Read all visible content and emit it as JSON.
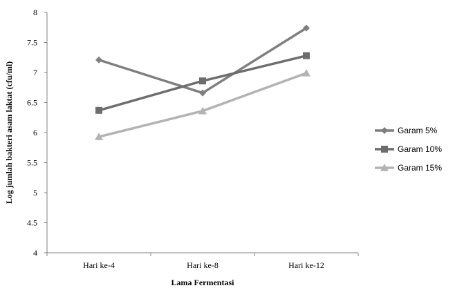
{
  "chart_data": {
    "type": "line",
    "title": "",
    "xlabel": "Lama Fermentasi",
    "ylabel": "Log jumlah bakteri asam laktat (cfu/ml)",
    "categories": [
      "Hari ke-4",
      "Hari ke-8",
      "Hari ke-12"
    ],
    "ylim": [
      4,
      8
    ],
    "yticks": [
      "4",
      "4.5",
      "5",
      "5.5",
      "6",
      "6.5",
      "7",
      "7.5",
      "8"
    ],
    "grid": false,
    "legend_position": "right",
    "series": [
      {
        "name": "Garam 5%",
        "values": [
          7.21,
          6.66,
          7.74
        ],
        "color": "#7f7f7f",
        "marker": "diamond"
      },
      {
        "name": "Garam 10%",
        "values": [
          6.37,
          6.86,
          7.28
        ],
        "color": "#6d6d6d",
        "marker": "square"
      },
      {
        "name": "Garam 15%",
        "values": [
          5.93,
          6.36,
          6.99
        ],
        "color": "#b3b3b3",
        "marker": "triangle"
      }
    ]
  }
}
